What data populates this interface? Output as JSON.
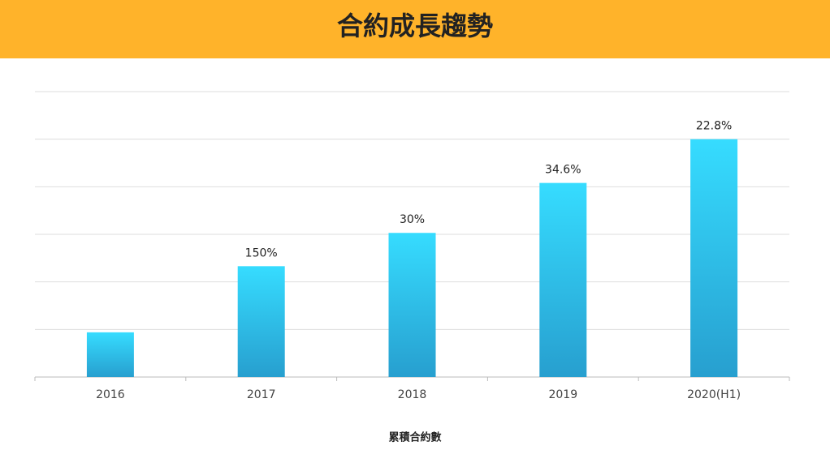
{
  "header": {
    "title": "合約成長趨勢"
  },
  "chart_data": {
    "type": "bar",
    "categories": [
      "2016",
      "2017",
      "2018",
      "2019",
      "2020(H1)"
    ],
    "values": [
      0.94,
      2.33,
      3.03,
      4.08,
      5.0
    ],
    "growth_labels": [
      null,
      "150%",
      "30%",
      "34.6%",
      "22.8%"
    ],
    "color": "#36dcff",
    "ylim": [
      0,
      6
    ],
    "yticks": [
      0,
      1,
      2,
      3,
      4,
      5,
      6
    ],
    "grid": true,
    "x_label": "累積合約數"
  }
}
